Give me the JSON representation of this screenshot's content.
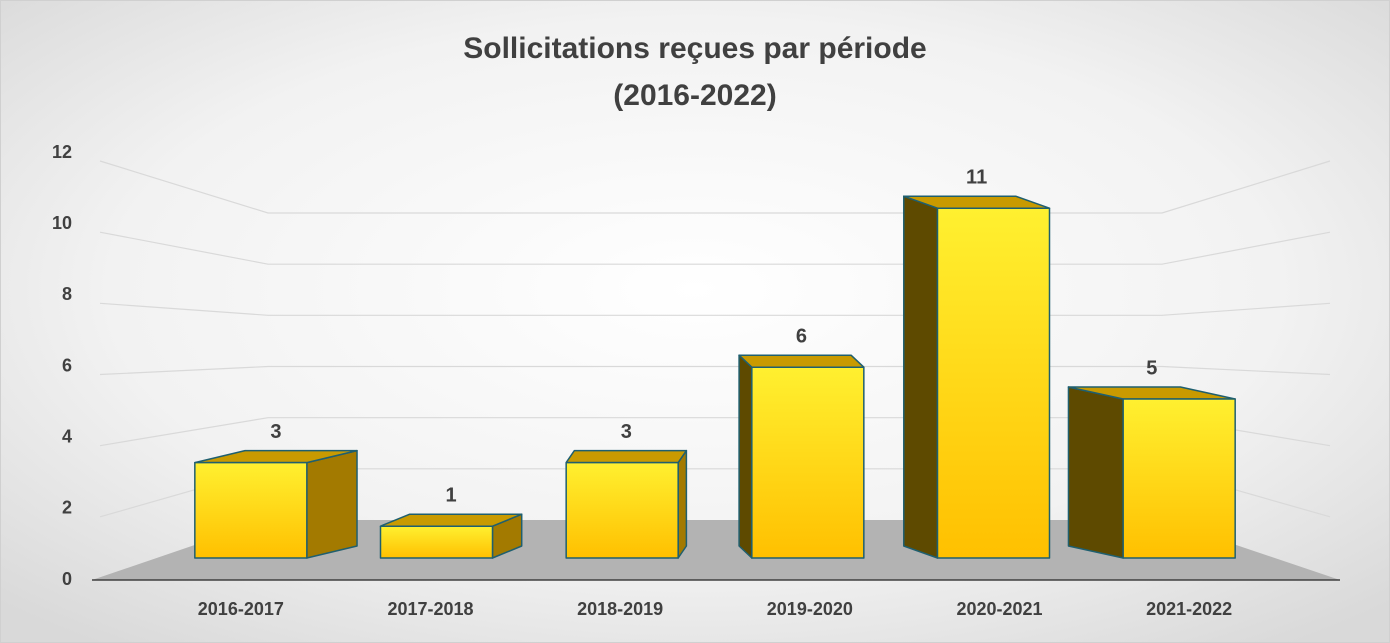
{
  "chart_data": {
    "type": "bar3d",
    "title": [
      "Sollicitations reçues par période",
      "(2016-2022)"
    ],
    "categories": [
      "2016-2017",
      "2017-2018",
      "2018-2019",
      "2019-2020",
      "2020-2021",
      "2021-2022"
    ],
    "values": [
      3,
      1,
      3,
      6,
      11,
      5
    ],
    "color": "#ffc000",
    "ylim": [
      0,
      12
    ],
    "yticks": [
      0,
      2,
      4,
      6,
      8,
      10,
      12
    ],
    "grid": true
  }
}
